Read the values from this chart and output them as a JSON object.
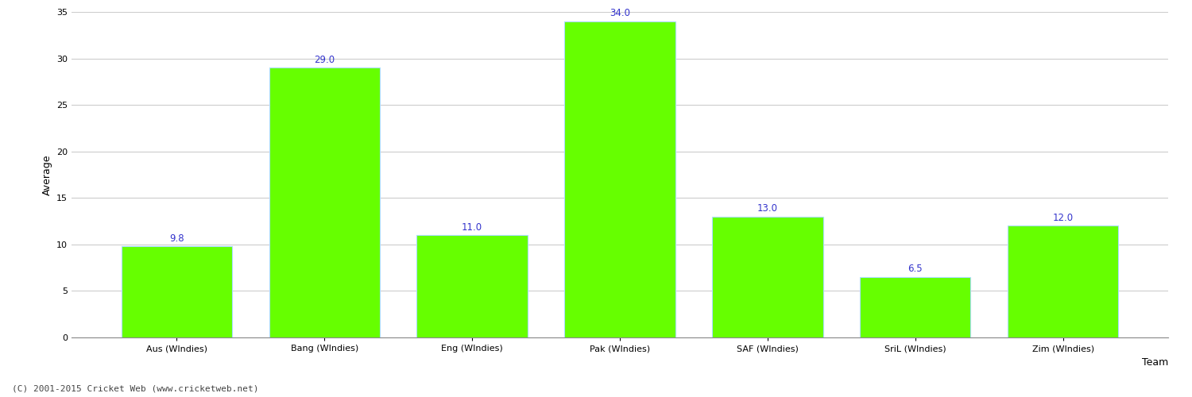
{
  "categories": [
    "Aus (WIndies)",
    "Bang (WIndies)",
    "Eng (WIndies)",
    "Pak (WIndies)",
    "SAF (WIndies)",
    "SriL (WIndies)",
    "Zim (WIndies)"
  ],
  "values": [
    9.8,
    29.0,
    11.0,
    34.0,
    13.0,
    6.5,
    12.0
  ],
  "bar_color": "#66ff00",
  "bar_edge_color": "#aaddff",
  "label_color": "#3333cc",
  "label_fontsize": 8.5,
  "ylabel": "Average",
  "xlabel": "Team",
  "ylim": [
    0,
    35
  ],
  "yticks": [
    0,
    5,
    10,
    15,
    20,
    25,
    30,
    35
  ],
  "grid_color": "#cccccc",
  "bg_color": "#ffffff",
  "footer": "(C) 2001-2015 Cricket Web (www.cricketweb.net)",
  "footer_fontsize": 8,
  "footer_color": "#444444",
  "ylabel_fontsize": 9,
  "xlabel_fontsize": 9,
  "tick_fontsize": 8,
  "bar_width": 0.75
}
